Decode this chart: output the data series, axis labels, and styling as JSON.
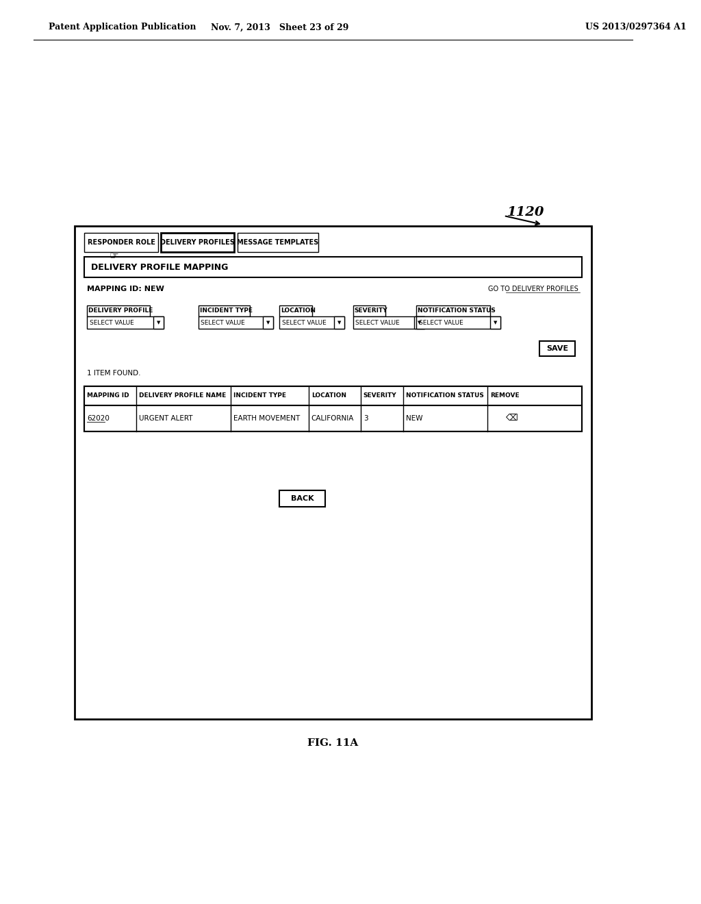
{
  "bg_color": "#ffffff",
  "header_left": "Patent Application Publication",
  "header_mid": "Nov. 7, 2013   Sheet 23 of 29",
  "header_right": "US 2013/0297364 A1",
  "figure_label": "FIG. 11A",
  "ref_number": "1120",
  "tab_buttons": [
    "RESPONDER ROLE",
    "DELIVERY PROFILES",
    "MESSAGE TEMPLATES"
  ],
  "active_tab": 1,
  "section_title": "DELIVERY PROFILE MAPPING",
  "mapping_id_label": "MAPPING ID: NEW",
  "goto_link": "GO TO DELIVERY PROFILES",
  "form_labels": [
    "DELIVERY PROFILE",
    "INCIDENT TYPE",
    "LOCATION",
    "SEVERITY",
    "NOTIFICATION STATUS"
  ],
  "save_button": "SAVE",
  "found_text": "1 ITEM FOUND.",
  "table_headers": [
    "MAPPING ID",
    "DELIVERY PROFILE NAME",
    "INCIDENT TYPE",
    "LOCATION",
    "SEVERITY",
    "NOTIFICATION STATUS",
    "REMOVE"
  ],
  "table_row": [
    "62020",
    "URGENT ALERT",
    "EARTH MOVEMENT",
    "CALIFORNIA",
    "3",
    "NEW",
    "⌫"
  ],
  "back_button": "BACK"
}
